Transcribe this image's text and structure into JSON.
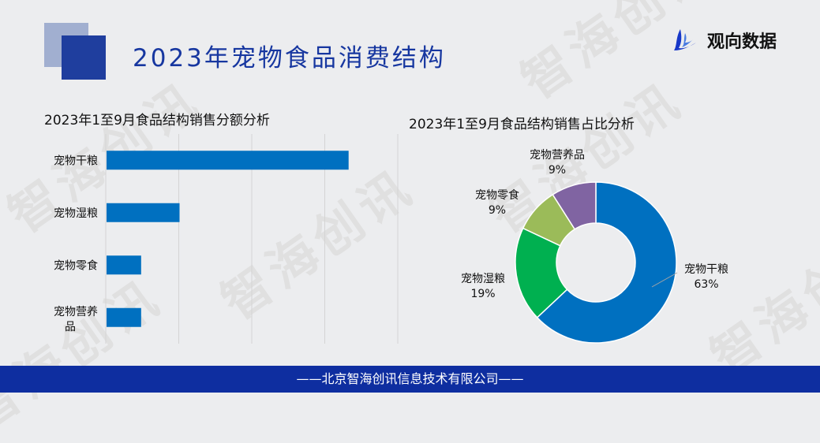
{
  "header": {
    "title": "2023年宠物食品消费结构",
    "logo_text": "观向数据"
  },
  "watermark": "智海创讯",
  "footer": {
    "text": "——北京智海创讯信息技术有限公司——"
  },
  "colors": {
    "primary": "#0070c0",
    "green": "#00b050",
    "olive": "#9bbb59",
    "purple": "#8064a2",
    "title": "#1737a0",
    "footer": "#0e2ea0"
  },
  "chart_data": [
    {
      "type": "bar",
      "orientation": "horizontal",
      "title": "2023年1至9月食品结构销售分额分析",
      "categories": [
        "宠物干粮",
        "宠物湿粮",
        "宠物零食",
        "宠物营养品"
      ],
      "values": [
        63,
        19,
        9,
        9
      ],
      "xlim": [
        0,
        76
      ],
      "grid": true,
      "color": "#0070c0"
    },
    {
      "type": "pie",
      "donut": true,
      "title": "2023年1至9月食品结构销售占比分析",
      "slices": [
        {
          "label": "宠物干粮",
          "value": 63,
          "display": "63%",
          "color": "#0070c0"
        },
        {
          "label": "宠物湿粮",
          "value": 19,
          "display": "19%",
          "color": "#00b050"
        },
        {
          "label": "宠物零食",
          "value": 9,
          "display": "9%",
          "color": "#9bbb59"
        },
        {
          "label": "宠物营养品",
          "value": 9,
          "display": "9%",
          "color": "#8064a2"
        }
      ]
    }
  ]
}
